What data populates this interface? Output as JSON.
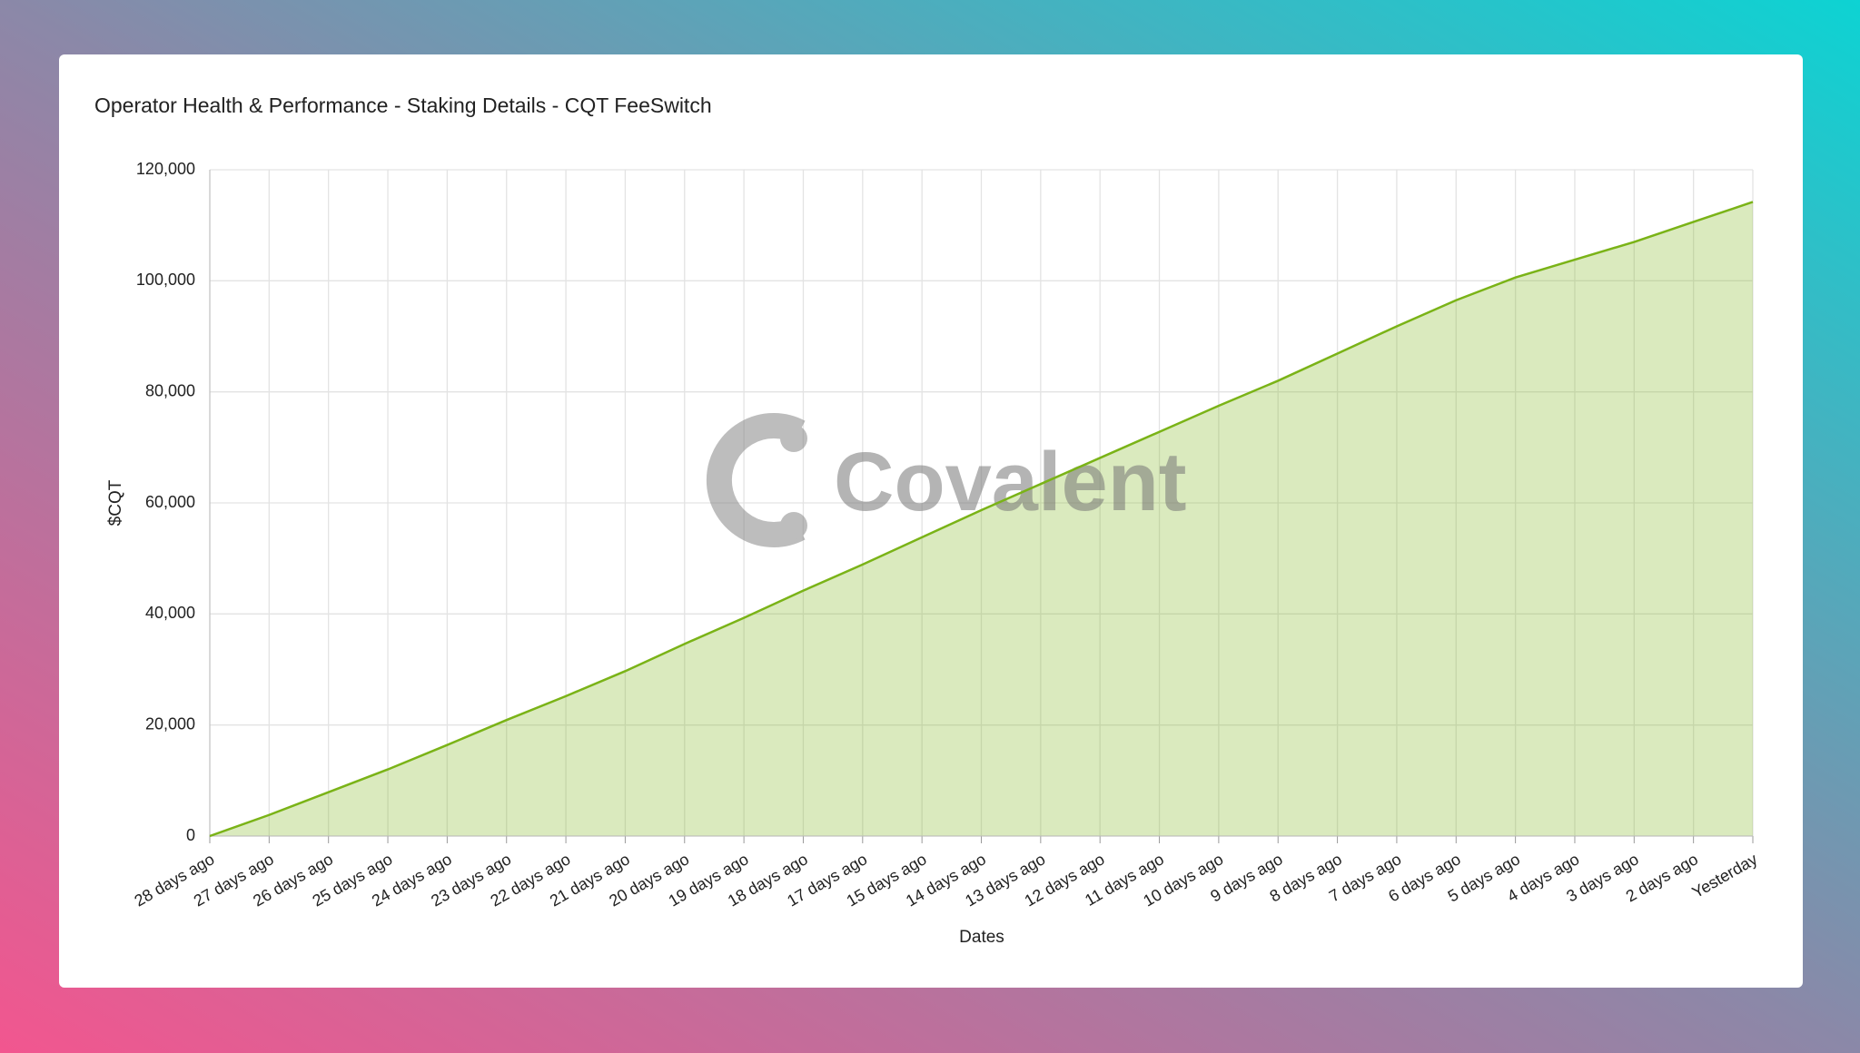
{
  "chart_data": {
    "type": "area",
    "title": "Operator Health & Performance - Staking Details - CQT FeeSwitch",
    "watermark": "Covalent",
    "x_label": "Dates",
    "y_label": "$CQT",
    "categories": [
      "28 days ago",
      "27 days ago",
      "26 days ago",
      "25 days ago",
      "24 days ago",
      "23 days ago",
      "22 days ago",
      "21 days ago",
      "20 days ago",
      "19 days ago",
      "18 days ago",
      "17 days ago",
      "15 days ago",
      "14 days ago",
      "13 days ago",
      "12 days ago",
      "11 days ago",
      "10 days ago",
      "9 days ago",
      "8 days ago",
      "7 days ago",
      "6 days ago",
      "5 days ago",
      "4 days ago",
      "3 days ago",
      "2 days ago",
      "Yesterday"
    ],
    "series": [
      {
        "name": "$CQT",
        "color": "#7ab317",
        "values": [
          0,
          3800,
          7900,
          12000,
          16400,
          20900,
          25200,
          29700,
          34600,
          39300,
          44200,
          48900,
          53800,
          58700,
          63400,
          68100,
          72800,
          77500,
          82000,
          86900,
          91800,
          96500,
          100600,
          103800,
          107000,
          110600,
          114200
        ]
      }
    ],
    "ylim": [
      0,
      120000
    ],
    "yticks": [
      0,
      {
        "value": 20000,
        "label": "20,000"
      },
      {
        "value": 40000,
        "label": "40,000"
      },
      {
        "value": 60000,
        "label": "60,000"
      },
      {
        "value": 80000,
        "label": "80,000"
      },
      {
        "value": 100000,
        "label": "100,000"
      },
      {
        "value": 120000,
        "label": "120,000"
      }
    ],
    "grid": true
  }
}
